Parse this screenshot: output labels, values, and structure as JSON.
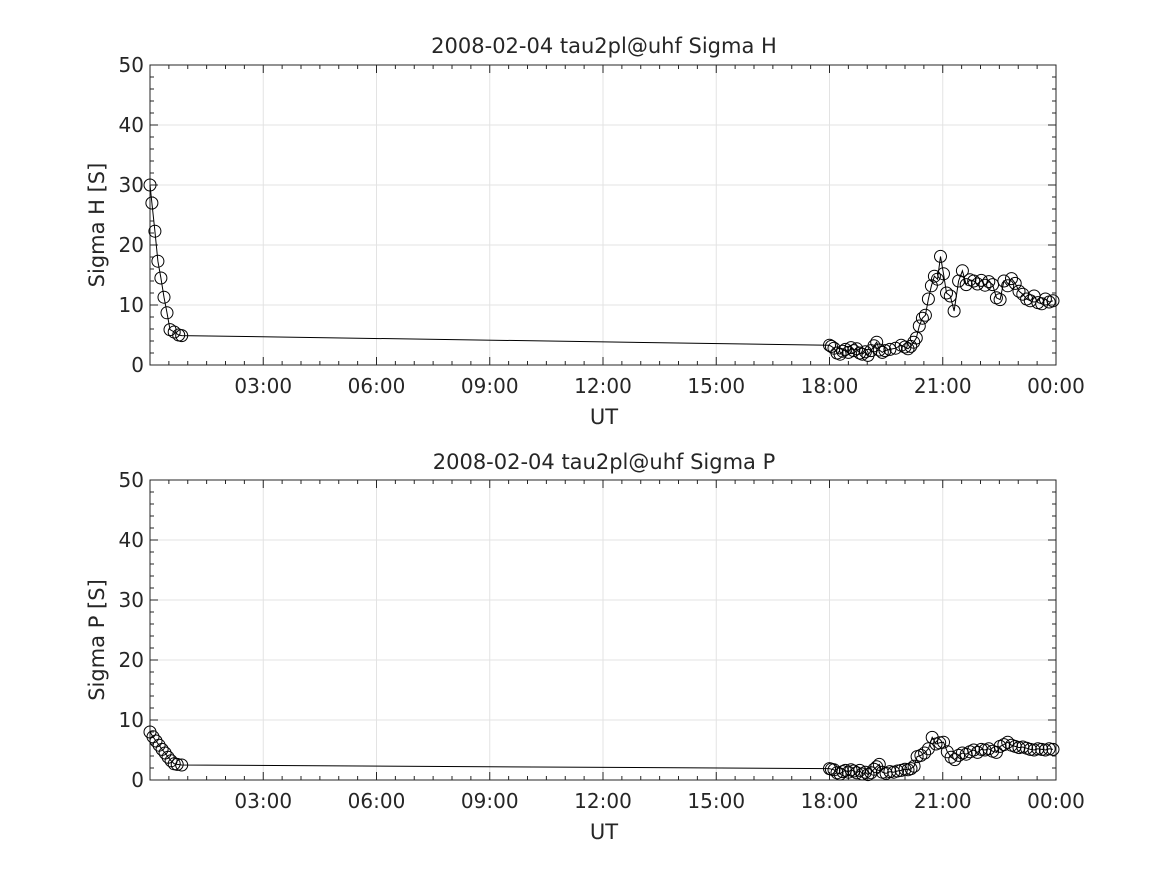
{
  "chart_data": [
    {
      "type": "line",
      "title": "2008-02-04  tau2pl@uhf Sigma H",
      "xlabel": "UT",
      "ylabel": "Sigma H [S]",
      "xlim": [
        "00:00",
        "24:00"
      ],
      "ylim": [
        0,
        50
      ],
      "yticks": [
        0,
        10,
        20,
        30,
        40,
        50
      ],
      "xtick_labels": [
        "03:00",
        "06:00",
        "09:00",
        "12:00",
        "15:00",
        "18:00",
        "21:00",
        "00:00"
      ],
      "grid": true,
      "marker": "circle",
      "series": [
        {
          "x_hours": [
            0.0,
            0.05,
            0.13,
            0.21,
            0.29,
            0.37,
            0.45,
            0.53,
            0.64,
            0.76,
            0.84,
            18.0,
            18.05,
            18.12,
            18.2,
            18.28,
            18.35,
            18.42,
            18.5,
            18.57,
            18.64,
            18.72,
            18.8,
            18.87,
            18.95,
            19.02,
            19.1,
            19.18,
            19.25,
            19.32,
            19.4,
            19.47,
            19.6,
            19.75,
            19.9,
            20.0,
            20.08,
            20.15,
            20.23,
            20.3,
            20.38,
            20.46,
            20.54,
            20.62,
            20.7,
            20.78,
            20.86,
            20.94,
            21.02,
            21.1,
            21.2,
            21.3,
            21.42,
            21.52,
            21.62,
            21.72,
            21.82,
            21.92,
            22.02,
            22.12,
            22.22,
            22.32,
            22.42,
            22.52,
            22.62,
            22.72,
            22.82,
            22.92,
            23.02,
            23.12,
            23.22,
            23.32,
            23.42,
            23.52,
            23.62,
            23.72,
            23.82,
            23.92
          ],
          "y": [
            30.0,
            27.0,
            22.3,
            17.3,
            14.5,
            11.3,
            8.7,
            5.9,
            5.5,
            5.0,
            4.9,
            3.3,
            3.1,
            2.8,
            2.0,
            1.8,
            2.3,
            2.6,
            2.1,
            2.9,
            2.4,
            2.7,
            2.0,
            1.8,
            2.2,
            1.6,
            2.4,
            3.2,
            3.8,
            2.5,
            2.1,
            2.4,
            2.6,
            2.8,
            3.3,
            3.0,
            2.7,
            3.1,
            3.8,
            4.5,
            6.5,
            7.8,
            8.3,
            11.0,
            13.2,
            14.8,
            14.3,
            18.1,
            15.2,
            12.0,
            11.5,
            9.0,
            14.0,
            15.7,
            13.4,
            14.2,
            14.0,
            13.5,
            14.1,
            13.3,
            13.9,
            13.4,
            11.2,
            10.9,
            14.0,
            13.2,
            14.4,
            13.6,
            12.3,
            11.8,
            11.0,
            10.7,
            11.5,
            10.4,
            10.2,
            11.0,
            10.5,
            10.7
          ]
        }
      ]
    },
    {
      "type": "line",
      "title": "2008-02-04  tau2pl@uhf Sigma P",
      "xlabel": "UT",
      "ylabel": "Sigma P [S]",
      "xlim": [
        "00:00",
        "24:00"
      ],
      "ylim": [
        0,
        50
      ],
      "yticks": [
        0,
        10,
        20,
        30,
        40,
        50
      ],
      "xtick_labels": [
        "03:00",
        "06:00",
        "09:00",
        "12:00",
        "15:00",
        "18:00",
        "21:00",
        "00:00"
      ],
      "grid": true,
      "marker": "circle",
      "series": [
        {
          "x_hours": [
            0.0,
            0.08,
            0.16,
            0.24,
            0.32,
            0.4,
            0.48,
            0.56,
            0.64,
            0.72,
            0.84,
            18.0,
            18.05,
            18.12,
            18.2,
            18.28,
            18.35,
            18.42,
            18.5,
            18.57,
            18.64,
            18.72,
            18.8,
            18.87,
            18.95,
            19.02,
            19.1,
            19.18,
            19.25,
            19.32,
            19.4,
            19.5,
            19.6,
            19.7,
            19.8,
            19.9,
            20.0,
            20.08,
            20.16,
            20.24,
            20.32,
            20.42,
            20.52,
            20.62,
            20.72,
            20.82,
            20.92,
            21.02,
            21.12,
            21.22,
            21.32,
            21.42,
            21.52,
            21.62,
            21.72,
            21.82,
            21.92,
            22.02,
            22.12,
            22.22,
            22.32,
            22.42,
            22.52,
            22.62,
            22.72,
            22.82,
            22.92,
            23.02,
            23.12,
            23.22,
            23.32,
            23.42,
            23.52,
            23.62,
            23.72,
            23.82,
            23.92
          ],
          "y": [
            8.0,
            7.2,
            6.5,
            5.8,
            5.1,
            4.5,
            3.8,
            3.2,
            2.7,
            2.6,
            2.5,
            1.9,
            1.8,
            1.7,
            1.2,
            1.0,
            1.4,
            1.6,
            1.3,
            1.7,
            1.5,
            1.2,
            1.6,
            1.0,
            1.3,
            0.9,
            1.2,
            1.8,
            2.2,
            2.6,
            1.3,
            1.1,
            1.4,
            1.3,
            1.5,
            1.6,
            1.8,
            1.7,
            1.9,
            2.3,
            3.9,
            4.1,
            4.5,
            5.2,
            7.1,
            6.0,
            6.2,
            6.3,
            4.7,
            3.8,
            3.4,
            4.1,
            4.5,
            4.3,
            4.7,
            5.0,
            4.6,
            5.1,
            5.0,
            5.2,
            4.8,
            4.6,
            5.6,
            5.9,
            6.3,
            5.8,
            5.6,
            5.4,
            5.5,
            5.3,
            5.1,
            5.0,
            5.2,
            5.1,
            5.0,
            5.2,
            5.1
          ]
        }
      ]
    }
  ]
}
